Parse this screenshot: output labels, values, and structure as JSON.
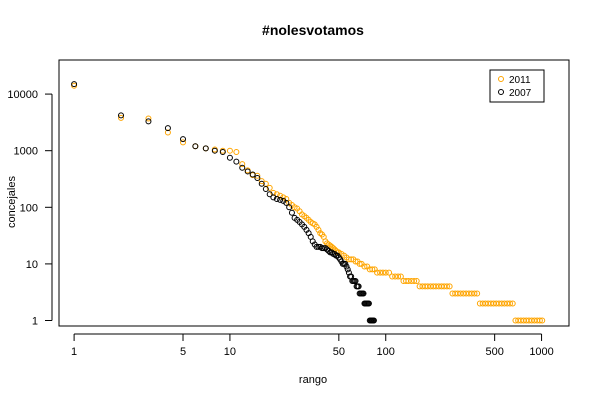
{
  "chart_data": {
    "type": "scatter",
    "title": "#nolesvotamos",
    "xlabel": "rango",
    "ylabel": "concejales",
    "x_scale": "log",
    "y_scale": "log",
    "xlim": [
      0.8,
      1500
    ],
    "ylim": [
      0.8,
      40000
    ],
    "x_ticks": [
      1,
      5,
      10,
      50,
      100,
      500,
      1000
    ],
    "x_tick_labels": [
      "1",
      "5",
      "10",
      "50",
      "100",
      "500",
      "1000"
    ],
    "y_ticks": [
      1,
      10,
      100,
      1000,
      10000
    ],
    "y_tick_labels": [
      "1",
      "10",
      "100",
      "1000",
      "10000"
    ],
    "grid": false,
    "legend_position": "top-right",
    "colors": {
      "2011": "#ffa500",
      "2007": "#000000"
    },
    "series": [
      {
        "name": "2011",
        "color": "#ffa500",
        "x": [
          1,
          2,
          3,
          4,
          5,
          6,
          7,
          8,
          9,
          10,
          11,
          12,
          13,
          14,
          15,
          16,
          17,
          18,
          19,
          20,
          21,
          22,
          23,
          24,
          25,
          26,
          27,
          28,
          29,
          30,
          31,
          32,
          33,
          34,
          35,
          36,
          37,
          38,
          39,
          40,
          41,
          42,
          43,
          44,
          45,
          46,
          47,
          48,
          49,
          50,
          52,
          54,
          56,
          58,
          60,
          62,
          64,
          66,
          68,
          70,
          73,
          76,
          79,
          82,
          85,
          88,
          92,
          96,
          100,
          105,
          110,
          115,
          120,
          125,
          130,
          135,
          140,
          146,
          152,
          158,
          165,
          172,
          179,
          186,
          194,
          202,
          210,
          219,
          228,
          237,
          247,
          257,
          268,
          279,
          290,
          302,
          315,
          328,
          342,
          356,
          371,
          386,
          402,
          419,
          436,
          454,
          473,
          492,
          512,
          533,
          555,
          578,
          602,
          627,
          653,
          680,
          708,
          737,
          767,
          798,
          830,
          864,
          900,
          937,
          975,
          1010
        ],
        "y": [
          14000,
          3800,
          3700,
          2100,
          1400,
          1200,
          1100,
          1050,
          1000,
          1000,
          950,
          580,
          450,
          370,
          360,
          290,
          260,
          220,
          180,
          170,
          160,
          150,
          140,
          120,
          110,
          100,
          95,
          85,
          75,
          70,
          65,
          60,
          55,
          52,
          50,
          45,
          40,
          35,
          33,
          30,
          25,
          23,
          22,
          21,
          20,
          19,
          18,
          17,
          16,
          16,
          15,
          14,
          13,
          12,
          12,
          12,
          11,
          11,
          10,
          10,
          9,
          9,
          8,
          8,
          8,
          7,
          7,
          7,
          7,
          7,
          6,
          6,
          6,
          6,
          5,
          5,
          5,
          5,
          5,
          5,
          4,
          4,
          4,
          4,
          4,
          4,
          4,
          4,
          4,
          4,
          4,
          4,
          3,
          3,
          3,
          3,
          3,
          3,
          3,
          3,
          3,
          3,
          2,
          2,
          2,
          2,
          2,
          2,
          2,
          2,
          2,
          2,
          2,
          2,
          2,
          1,
          1,
          1,
          1,
          1,
          1,
          1,
          1,
          1,
          1,
          1
        ]
      },
      {
        "name": "2007",
        "color": "#000000",
        "x": [
          1,
          2,
          3,
          4,
          5,
          6,
          7,
          8,
          9,
          10,
          11,
          12,
          13,
          14,
          15,
          16,
          17,
          18,
          19,
          20,
          21,
          22,
          23,
          24,
          25,
          26,
          27,
          28,
          29,
          30,
          31,
          32,
          33,
          34,
          35,
          36,
          37,
          38,
          39,
          40,
          41,
          42,
          43,
          44,
          45,
          46,
          47,
          48,
          49,
          50,
          51,
          52,
          53,
          54,
          55,
          56,
          57,
          58,
          59,
          60,
          61,
          62,
          63,
          64,
          65,
          66,
          67,
          68,
          69,
          70,
          71,
          72,
          73,
          74,
          75,
          76,
          77,
          78,
          79,
          80,
          81,
          82,
          83,
          84
        ],
        "y": [
          15000,
          4200,
          3300,
          2500,
          1600,
          1200,
          1100,
          1000,
          950,
          750,
          640,
          500,
          430,
          380,
          330,
          260,
          210,
          170,
          150,
          140,
          135,
          130,
          120,
          100,
          80,
          65,
          60,
          55,
          50,
          45,
          40,
          35,
          30,
          25,
          22,
          20,
          20,
          20,
          19,
          19,
          19,
          18,
          17,
          16,
          16,
          15,
          15,
          14,
          14,
          13,
          12,
          11,
          10,
          10,
          10,
          9,
          8,
          7,
          6,
          6,
          5,
          5,
          5,
          5,
          4,
          4,
          4,
          3,
          3,
          3,
          3,
          3,
          2,
          2,
          2,
          2,
          2,
          2,
          1,
          1,
          1,
          1,
          1,
          1
        ]
      }
    ]
  }
}
